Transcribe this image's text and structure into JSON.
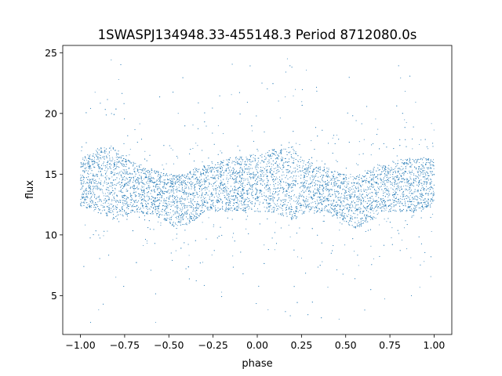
{
  "chart_data": {
    "type": "scatter",
    "title": "1SWASPJ134948.33-455148.3 Period 8712080.0s",
    "xlabel": "phase",
    "ylabel": "flux",
    "xlim": [
      -1.1,
      1.1
    ],
    "ylim": [
      1.8,
      25.6
    ],
    "xticks": [
      -1.0,
      -0.75,
      -0.5,
      -0.25,
      0.0,
      0.25,
      0.5,
      0.75,
      1.0
    ],
    "xtick_labels": [
      "−1.00",
      "−0.75",
      "−0.50",
      "−0.25",
      "0.00",
      "0.25",
      "0.50",
      "0.75",
      "1.00"
    ],
    "yticks": [
      5,
      10,
      15,
      20,
      25
    ],
    "ytick_labels": [
      "5",
      "10",
      "15",
      "20",
      "25"
    ],
    "grid": false,
    "legend": "none",
    "marker_color": "#1f77b4",
    "series": [
      {
        "x_range": [
          -1.0,
          1.0
        ],
        "description_points": "dense band, phase-folded light curve (two cycles)",
        "profile_phase": [
          -1.0,
          -0.9,
          -0.8,
          -0.75,
          -0.7,
          -0.6,
          -0.5,
          -0.45,
          -0.4,
          -0.35,
          -0.3,
          -0.2,
          -0.1,
          0.0,
          0.1,
          0.2,
          0.25,
          0.3,
          0.4,
          0.5,
          0.55,
          0.6,
          0.65,
          0.7,
          0.8,
          0.9,
          1.0
        ],
        "profile_center": [
          14.3,
          14.5,
          14.2,
          14.0,
          13.9,
          13.6,
          13.0,
          12.7,
          12.9,
          13.4,
          13.8,
          14.0,
          14.2,
          14.3,
          14.5,
          14.2,
          14.0,
          13.9,
          13.6,
          13.0,
          12.7,
          12.9,
          13.4,
          13.8,
          14.0,
          14.2,
          14.3
        ],
        "profile_halfwidth": [
          2.0,
          2.8,
          3.2,
          2.5,
          2.2,
          2.0,
          2.1,
          2.4,
          2.2,
          2.3,
          2.0,
          2.2,
          2.4,
          2.5,
          2.8,
          3.2,
          2.5,
          2.2,
          2.0,
          2.1,
          2.4,
          2.2,
          2.3,
          2.0,
          2.2,
          2.4,
          2.0
        ],
        "outlier_min": 2.8,
        "outlier_max": 24.5
      }
    ]
  }
}
